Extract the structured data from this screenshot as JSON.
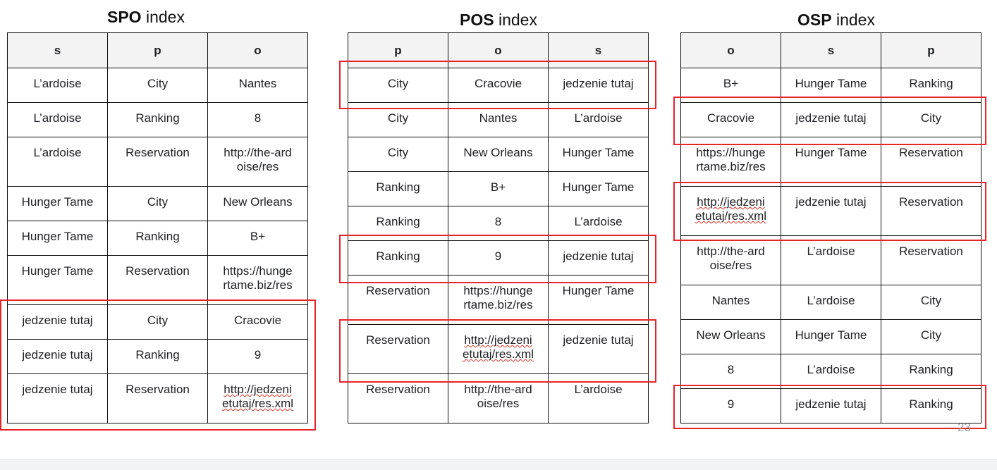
{
  "spo": {
    "title_bold": "SPO",
    "title_rest": " index",
    "headers": [
      "s",
      "p",
      "o"
    ],
    "rows": [
      [
        "L’ardoise",
        "City",
        "Nantes"
      ],
      [
        "L’ardoise",
        "Ranking",
        "8"
      ],
      [
        "L’ardoise",
        "Reservation",
        "http://the-ard oise/res"
      ],
      [
        "Hunger Tame",
        "City",
        "New Orleans"
      ],
      [
        "Hunger Tame",
        "Ranking",
        "B+"
      ],
      [
        "Hunger Tame",
        "Reservation",
        "https://hunge rtame.biz/res"
      ],
      [
        "jedzenie tutaj",
        "City",
        "Cracovie"
      ],
      [
        "jedzenie tutaj",
        "Ranking",
        "9"
      ],
      [
        "jedzenie tutaj",
        "Reservation",
        "http://jedzeni etutaj/res.xml"
      ]
    ]
  },
  "pos": {
    "title_bold": "POS",
    "title_rest": " index",
    "headers": [
      "p",
      "o",
      "s"
    ],
    "rows": [
      [
        "City",
        "Cracovie",
        "jedzenie tutaj"
      ],
      [
        "City",
        "Nantes",
        "L’ardoise"
      ],
      [
        "City",
        "New Orleans",
        "Hunger Tame"
      ],
      [
        "Ranking",
        "B+",
        "Hunger Tame"
      ],
      [
        "Ranking",
        "8",
        "L’ardoise"
      ],
      [
        "Ranking",
        "9",
        "jedzenie tutaj"
      ],
      [
        "Reservation",
        "https://hunge rtame.biz/res",
        "Hunger Tame"
      ],
      [
        "Reservation",
        "http://jedzeni etutaj/res.xml",
        "jedzenie tutaj"
      ],
      [
        "Reservation",
        "http://the-ard oise/res",
        "L’ardoise"
      ]
    ]
  },
  "osp": {
    "title_bold": "OSP",
    "title_rest": " index",
    "headers": [
      "o",
      "s",
      "p"
    ],
    "rows": [
      [
        "B+",
        "Hunger Tame",
        "Ranking"
      ],
      [
        "Cracovie",
        "jedzenie tutaj",
        "City"
      ],
      [
        "https://hunge rtame.biz/res",
        "Hunger Tame",
        "Reservation"
      ],
      [
        "http://jedzeni etutaj/res.xml",
        "jedzenie tutaj",
        "Reservation"
      ],
      [
        "http://the-ard oise/res",
        "L’ardoise",
        "Reservation"
      ],
      [
        "Nantes",
        "L’ardoise",
        "City"
      ],
      [
        "New Orleans",
        "Hunger Tame",
        "City"
      ],
      [
        "8",
        "L’ardoise",
        "Ranking"
      ],
      [
        "9",
        "jedzenie tutaj",
        "Ranking"
      ]
    ]
  },
  "page_number": "23",
  "highlight_color": "#e8242b"
}
